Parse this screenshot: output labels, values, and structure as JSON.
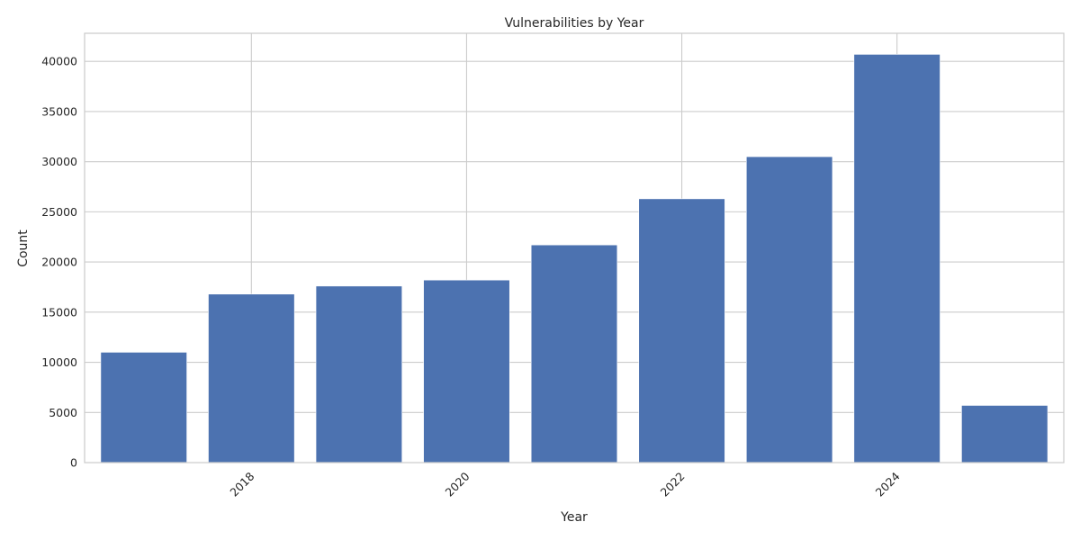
{
  "chart_data": {
    "type": "bar",
    "title": "Vulnerabilities by Year",
    "xlabel": "Year",
    "ylabel": "Count",
    "x": [
      2017,
      2018,
      2019,
      2020,
      2021,
      2022,
      2023,
      2024,
      2025
    ],
    "values": [
      11000,
      16800,
      17600,
      18200,
      21700,
      26300,
      30500,
      40700,
      5700
    ],
    "xlim": [
      2016.45,
      2025.55
    ],
    "ylim": [
      0,
      42800
    ],
    "xticks": [
      2018,
      2020,
      2022,
      2024
    ],
    "yticks": [
      0,
      5000,
      10000,
      15000,
      20000,
      25000,
      30000,
      35000,
      40000
    ],
    "bar_color": "#4c72b0",
    "grid": true,
    "legend": "none"
  }
}
